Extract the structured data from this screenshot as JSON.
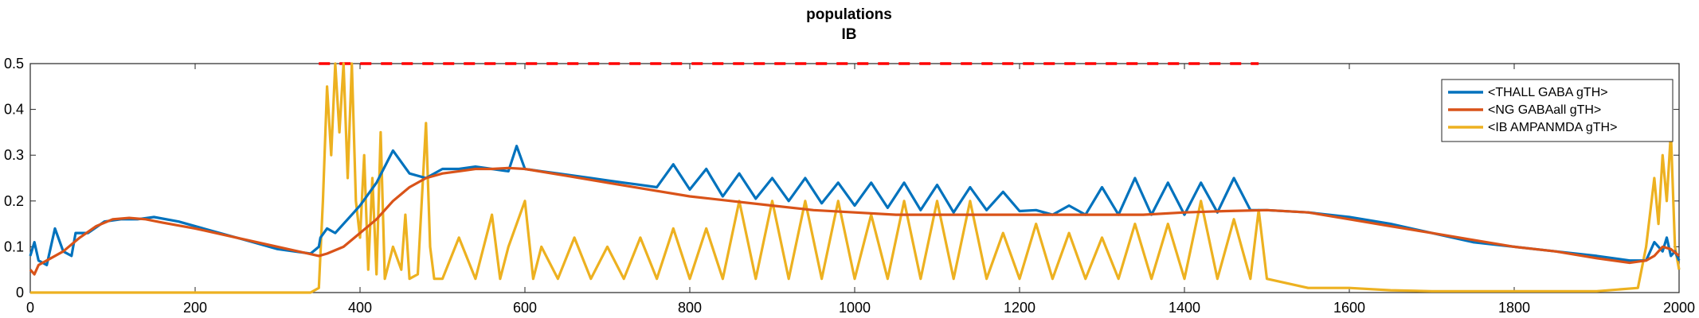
{
  "chart_data": {
    "type": "line",
    "title": [
      "populations",
      "IB"
    ],
    "xlabel": "",
    "ylabel": "",
    "xlim": [
      0,
      2000
    ],
    "ylim": [
      0,
      0.5
    ],
    "x_ticks": [
      0,
      200,
      400,
      600,
      800,
      1000,
      1200,
      1400,
      1600,
      1800,
      2000
    ],
    "y_ticks": [
      0,
      0.1,
      0.2,
      0.3,
      0.4,
      0.5
    ],
    "grid": false,
    "legend_position": "top-right",
    "threshold_line": {
      "y": 0.5,
      "x_start": 350,
      "x_end": 1490,
      "color": "#ff0000",
      "style": "dashed"
    },
    "series": [
      {
        "name": "<THALL GABA gTH>",
        "color": "#0072bd",
        "x": [
          0,
          5,
          10,
          20,
          30,
          40,
          50,
          55,
          70,
          90,
          110,
          130,
          150,
          180,
          210,
          240,
          270,
          300,
          320,
          340,
          350,
          352,
          360,
          370,
          380,
          390,
          400,
          420,
          440,
          460,
          480,
          500,
          520,
          540,
          560,
          580,
          590,
          600,
          620,
          640,
          660,
          680,
          700,
          720,
          740,
          760,
          780,
          800,
          820,
          840,
          860,
          880,
          900,
          920,
          940,
          960,
          980,
          1000,
          1020,
          1040,
          1060,
          1080,
          1100,
          1120,
          1140,
          1160,
          1180,
          1200,
          1220,
          1240,
          1260,
          1280,
          1300,
          1320,
          1340,
          1360,
          1380,
          1400,
          1420,
          1440,
          1460,
          1480,
          1500,
          1550,
          1600,
          1650,
          1700,
          1750,
          1800,
          1850,
          1900,
          1940,
          1960,
          1970,
          1980,
          1985,
          1990,
          1995,
          2000
        ],
        "values": [
          0.08,
          0.11,
          0.07,
          0.06,
          0.14,
          0.09,
          0.08,
          0.13,
          0.13,
          0.155,
          0.16,
          0.16,
          0.165,
          0.155,
          0.14,
          0.125,
          0.11,
          0.095,
          0.09,
          0.085,
          0.1,
          0.12,
          0.14,
          0.13,
          0.15,
          0.17,
          0.19,
          0.24,
          0.31,
          0.26,
          0.25,
          0.27,
          0.27,
          0.275,
          0.27,
          0.265,
          0.32,
          0.27,
          0.265,
          0.26,
          0.255,
          0.25,
          0.245,
          0.24,
          0.235,
          0.23,
          0.28,
          0.225,
          0.27,
          0.21,
          0.26,
          0.205,
          0.25,
          0.2,
          0.25,
          0.195,
          0.24,
          0.19,
          0.24,
          0.185,
          0.24,
          0.18,
          0.235,
          0.175,
          0.23,
          0.18,
          0.22,
          0.178,
          0.18,
          0.17,
          0.19,
          0.17,
          0.23,
          0.17,
          0.25,
          0.17,
          0.24,
          0.17,
          0.24,
          0.175,
          0.25,
          0.18,
          0.18,
          0.175,
          0.165,
          0.15,
          0.13,
          0.11,
          0.1,
          0.09,
          0.08,
          0.07,
          0.07,
          0.11,
          0.09,
          0.12,
          0.08,
          0.09,
          0.07
        ]
      },
      {
        "name": "<NG GABAall gTH>",
        "color": "#d95319",
        "x": [
          0,
          5,
          10,
          20,
          40,
          60,
          80,
          100,
          120,
          140,
          160,
          200,
          250,
          300,
          350,
          360,
          380,
          400,
          420,
          440,
          460,
          480,
          500,
          520,
          540,
          560,
          580,
          600,
          650,
          700,
          750,
          800,
          850,
          900,
          950,
          1000,
          1050,
          1100,
          1150,
          1200,
          1250,
          1300,
          1350,
          1400,
          1450,
          1500,
          1550,
          1600,
          1650,
          1700,
          1750,
          1800,
          1850,
          1900,
          1940,
          1960,
          1970,
          1980,
          1990,
          2000
        ],
        "values": [
          0.05,
          0.04,
          0.06,
          0.07,
          0.09,
          0.12,
          0.145,
          0.16,
          0.163,
          0.16,
          0.153,
          0.14,
          0.12,
          0.1,
          0.08,
          0.085,
          0.1,
          0.13,
          0.16,
          0.2,
          0.23,
          0.25,
          0.26,
          0.265,
          0.27,
          0.27,
          0.272,
          0.27,
          0.255,
          0.24,
          0.225,
          0.21,
          0.2,
          0.19,
          0.18,
          0.175,
          0.17,
          0.17,
          0.17,
          0.17,
          0.17,
          0.17,
          0.17,
          0.175,
          0.178,
          0.18,
          0.175,
          0.16,
          0.145,
          0.13,
          0.115,
          0.1,
          0.09,
          0.075,
          0.065,
          0.07,
          0.08,
          0.1,
          0.095,
          0.08
        ]
      },
      {
        "name": "<IB AMPANMDA gTH>",
        "color": "#edb120",
        "x": [
          0,
          50,
          100,
          150,
          200,
          250,
          300,
          340,
          350,
          355,
          360,
          365,
          370,
          375,
          380,
          385,
          390,
          395,
          400,
          405,
          410,
          415,
          420,
          425,
          430,
          440,
          450,
          455,
          460,
          470,
          480,
          485,
          490,
          500,
          520,
          540,
          560,
          570,
          580,
          600,
          610,
          620,
          640,
          660,
          680,
          700,
          720,
          740,
          760,
          780,
          800,
          820,
          840,
          860,
          880,
          900,
          920,
          940,
          960,
          980,
          1000,
          1020,
          1040,
          1060,
          1080,
          1100,
          1120,
          1140,
          1160,
          1180,
          1200,
          1220,
          1240,
          1260,
          1280,
          1300,
          1320,
          1340,
          1360,
          1380,
          1400,
          1420,
          1440,
          1460,
          1480,
          1490,
          1500,
          1550,
          1600,
          1650,
          1700,
          1750,
          1800,
          1850,
          1900,
          1950,
          1960,
          1970,
          1975,
          1980,
          1985,
          1990,
          1995,
          2000
        ],
        "values": [
          0.0,
          0.0,
          0.0,
          0.0,
          0.0,
          0.0,
          0.0,
          0.0,
          0.01,
          0.2,
          0.45,
          0.3,
          0.5,
          0.35,
          0.5,
          0.25,
          0.5,
          0.2,
          0.12,
          0.3,
          0.05,
          0.25,
          0.04,
          0.35,
          0.03,
          0.1,
          0.05,
          0.17,
          0.03,
          0.04,
          0.37,
          0.1,
          0.03,
          0.03,
          0.12,
          0.03,
          0.17,
          0.03,
          0.1,
          0.2,
          0.03,
          0.1,
          0.03,
          0.12,
          0.03,
          0.1,
          0.03,
          0.12,
          0.03,
          0.14,
          0.03,
          0.14,
          0.03,
          0.2,
          0.03,
          0.2,
          0.03,
          0.2,
          0.03,
          0.2,
          0.03,
          0.17,
          0.03,
          0.2,
          0.03,
          0.2,
          0.03,
          0.2,
          0.03,
          0.13,
          0.03,
          0.15,
          0.03,
          0.13,
          0.03,
          0.12,
          0.03,
          0.15,
          0.03,
          0.15,
          0.03,
          0.2,
          0.03,
          0.16,
          0.03,
          0.18,
          0.03,
          0.01,
          0.01,
          0.005,
          0.003,
          0.003,
          0.003,
          0.003,
          0.003,
          0.01,
          0.1,
          0.25,
          0.15,
          0.3,
          0.2,
          0.35,
          0.1,
          0.05
        ]
      }
    ]
  }
}
